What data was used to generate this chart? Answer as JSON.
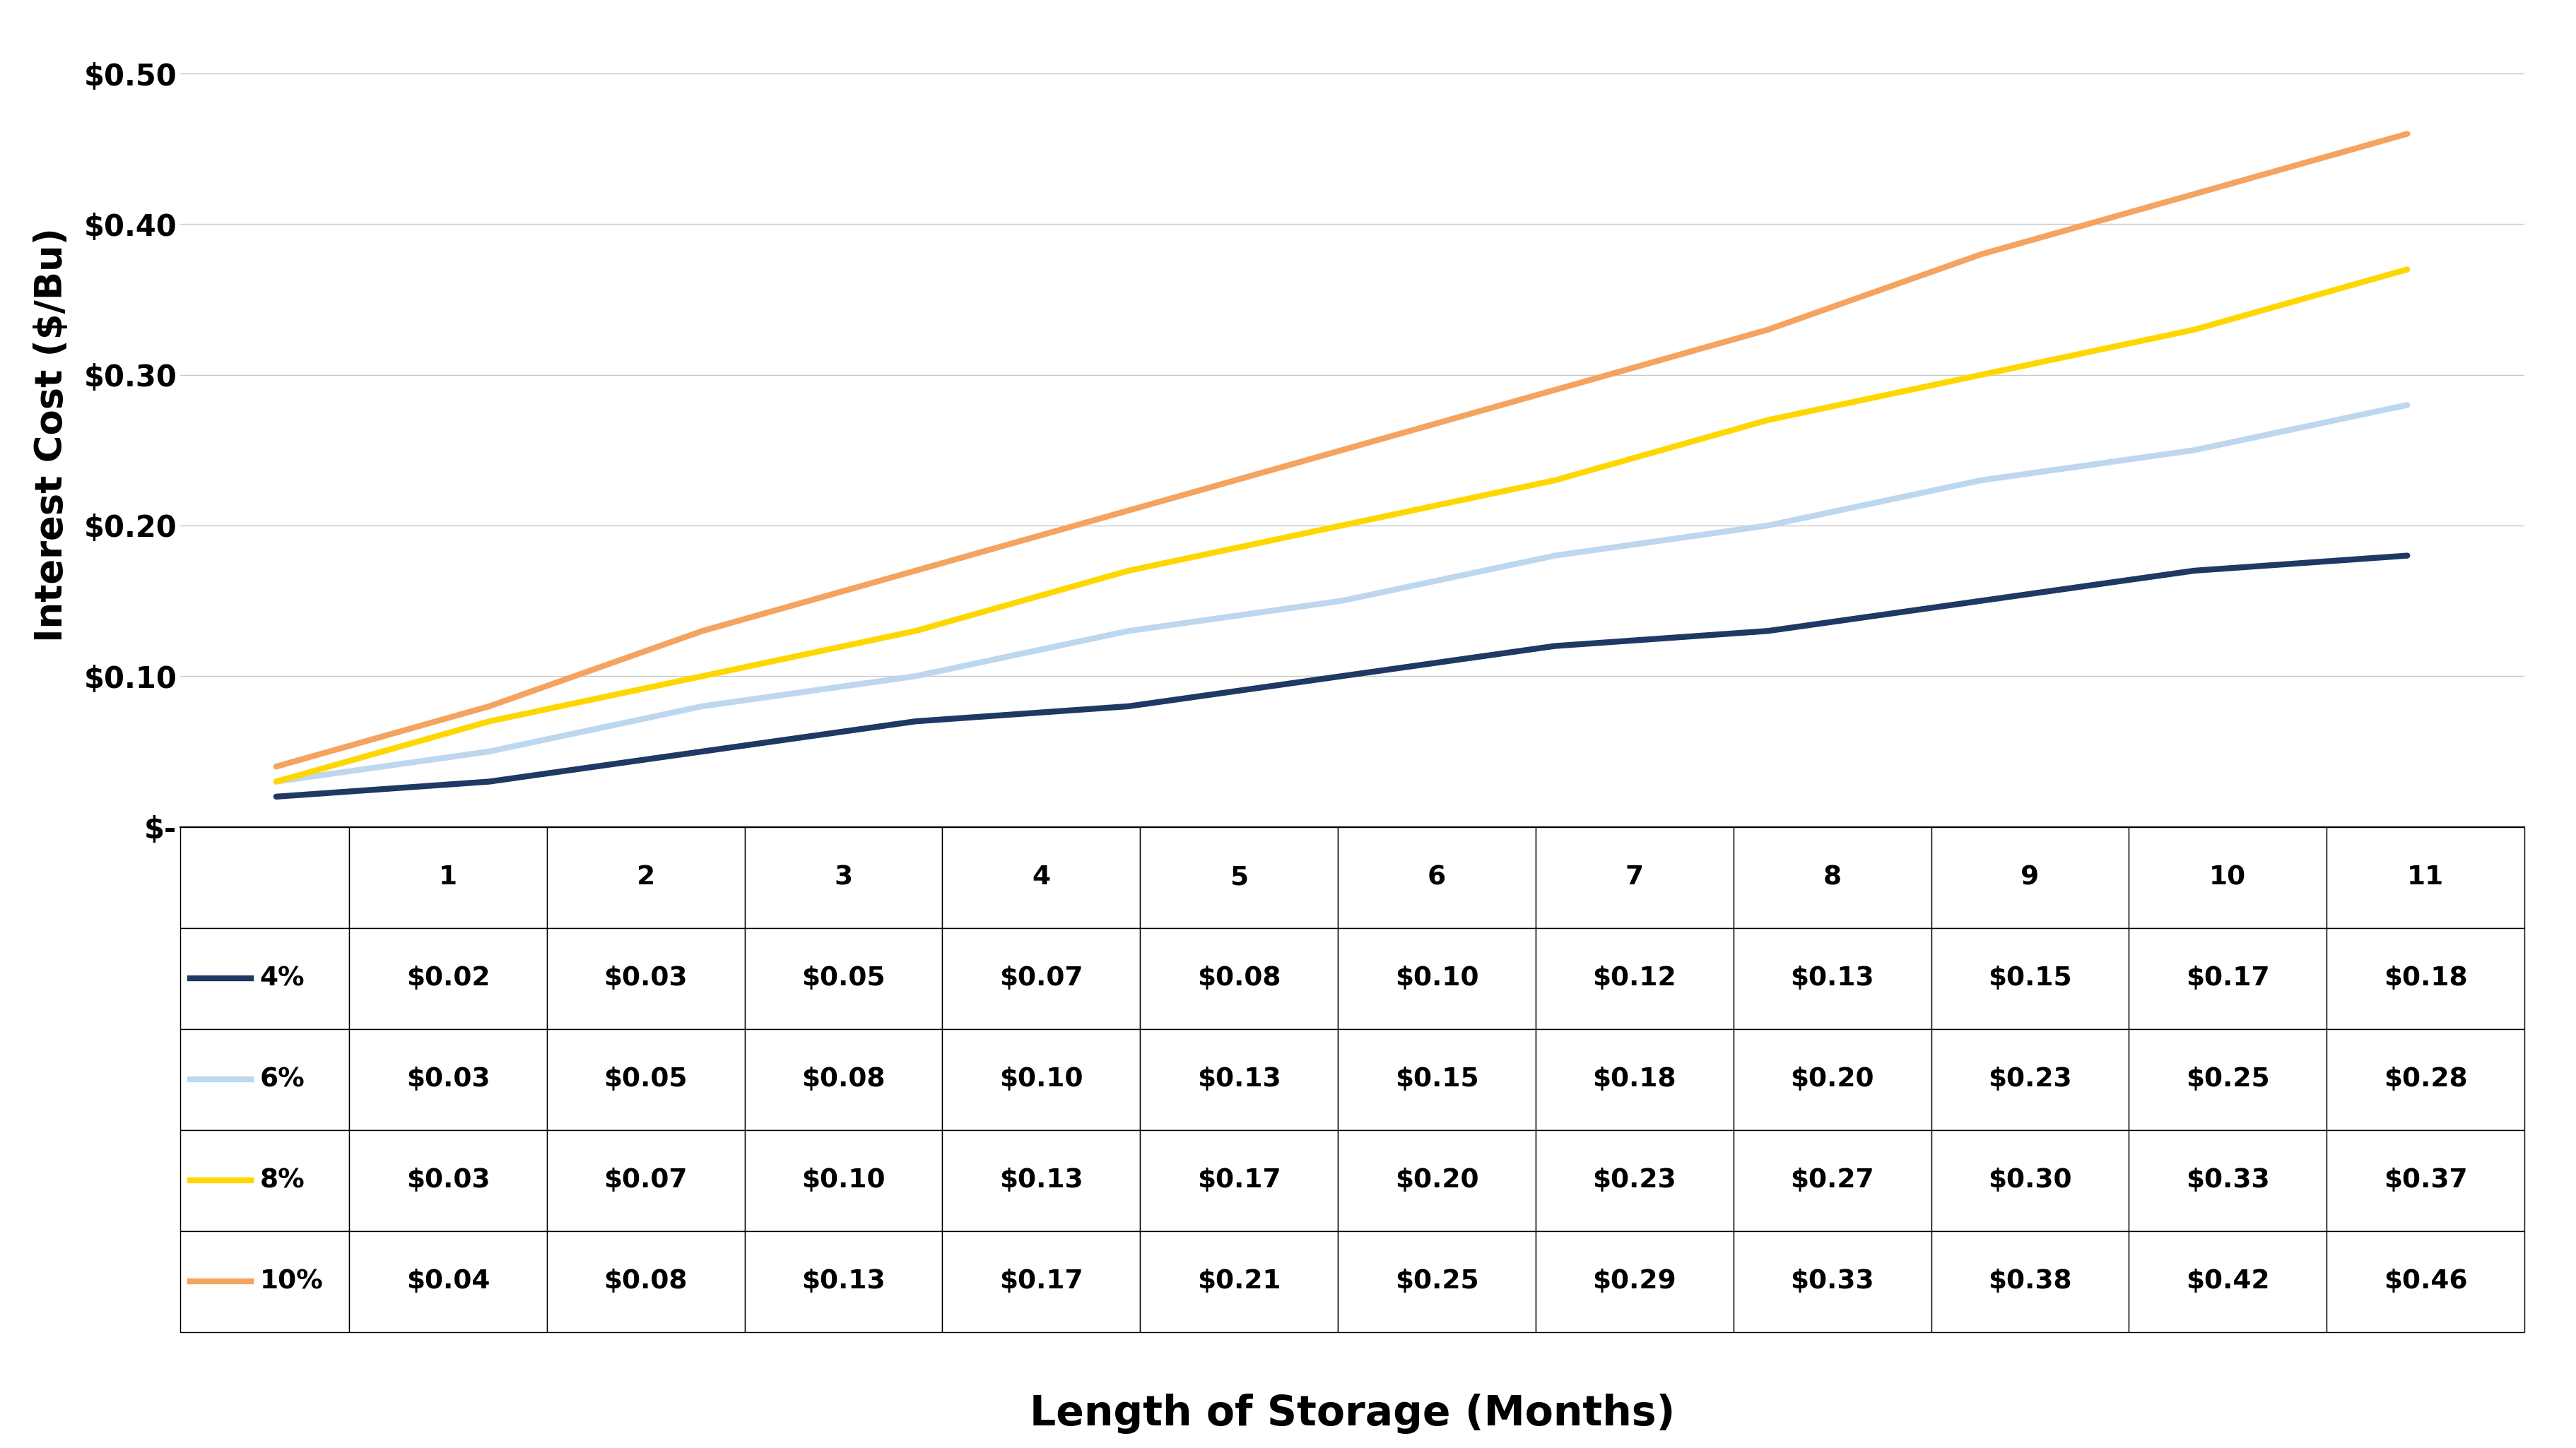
{
  "xlabel": "Length of Storage (Months)",
  "ylabel": "Interest Cost ($/Bu)",
  "x": [
    1,
    2,
    3,
    4,
    5,
    6,
    7,
    8,
    9,
    10,
    11
  ],
  "series": {
    "4%": [
      0.02,
      0.03,
      0.05,
      0.07,
      0.08,
      0.1,
      0.12,
      0.13,
      0.15,
      0.17,
      0.18
    ],
    "6%": [
      0.03,
      0.05,
      0.08,
      0.1,
      0.13,
      0.15,
      0.18,
      0.2,
      0.23,
      0.25,
      0.28
    ],
    "8%": [
      0.03,
      0.07,
      0.1,
      0.13,
      0.17,
      0.2,
      0.23,
      0.27,
      0.3,
      0.33,
      0.37
    ],
    "10%": [
      0.04,
      0.08,
      0.13,
      0.17,
      0.21,
      0.25,
      0.29,
      0.33,
      0.38,
      0.42,
      0.46
    ]
  },
  "colors": {
    "4%": "#1F3864",
    "6%": "#BDD7EE",
    "8%": "#FFD700",
    "10%": "#F4A460"
  },
  "ylim": [
    0.0,
    0.52
  ],
  "yticks": [
    0.0,
    0.1,
    0.2,
    0.3,
    0.4,
    0.5
  ],
  "ytick_labels": [
    "$-",
    "$0.10",
    "$0.20",
    "$0.30",
    "$0.40",
    "$0.50"
  ],
  "line_width": 6.0,
  "grid_color": "#c8c8c8",
  "legend_order": [
    "4%",
    "6%",
    "8%",
    "10%"
  ],
  "table_col_header": [
    "",
    "1",
    "2",
    "3",
    "4",
    "5",
    "6",
    "7",
    "8",
    "9",
    "10",
    "11"
  ],
  "table_values": {
    "4%": [
      "$0.02",
      "$0.03",
      "$0.05",
      "$0.07",
      "$0.08",
      "$0.10",
      "$0.12",
      "$0.13",
      "$0.15",
      "$0.17",
      "$0.18"
    ],
    "6%": [
      "$0.03",
      "$0.05",
      "$0.08",
      "$0.10",
      "$0.13",
      "$0.15",
      "$0.18",
      "$0.20",
      "$0.23",
      "$0.25",
      "$0.28"
    ],
    "8%": [
      "$0.03",
      "$0.07",
      "$0.10",
      "$0.13",
      "$0.17",
      "$0.20",
      "$0.23",
      "$0.27",
      "$0.30",
      "$0.33",
      "$0.37"
    ],
    "10%": [
      "$0.04",
      "$0.08",
      "$0.13",
      "$0.17",
      "$0.21",
      "$0.25",
      "$0.29",
      "$0.33",
      "$0.38",
      "$0.42",
      "$0.46"
    ]
  }
}
